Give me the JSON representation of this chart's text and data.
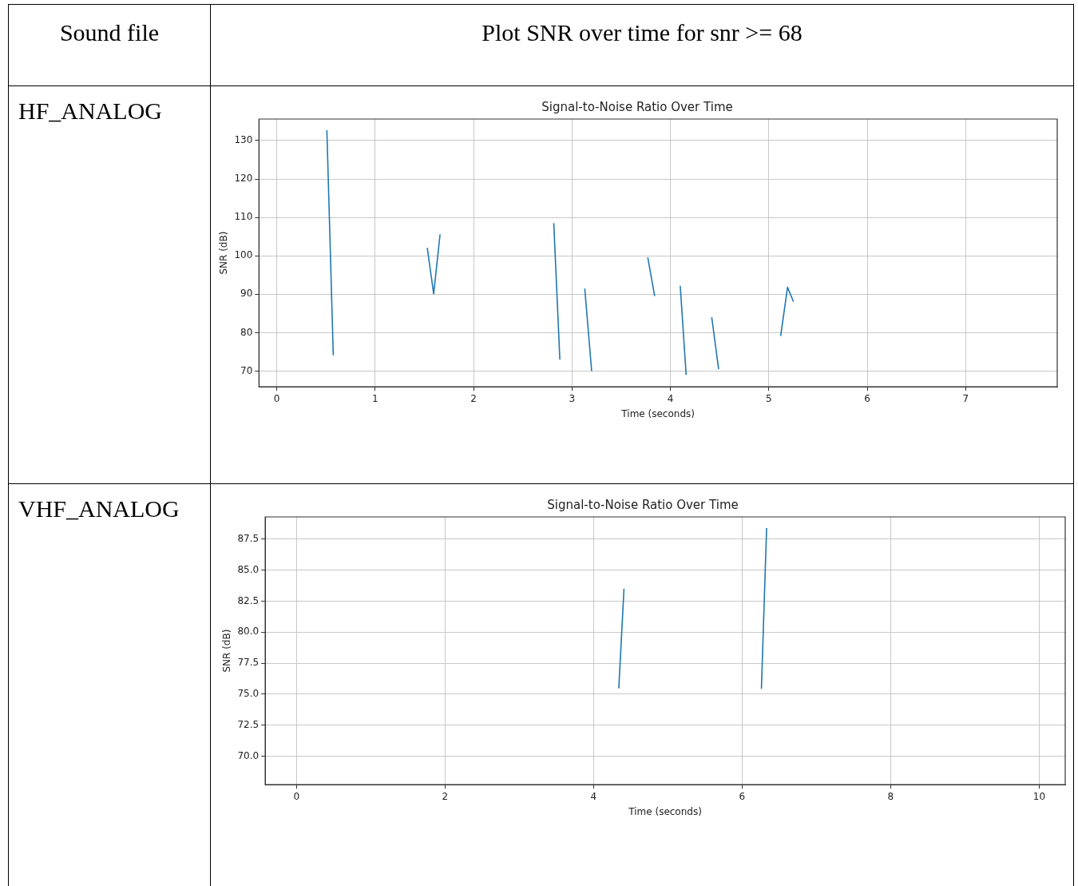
{
  "chart_data": [
    {
      "type": "line",
      "title": "Signal-to-Noise Ratio Over Time",
      "xlabel": "Time (seconds)",
      "ylabel": "SNR (dB)",
      "annotations": [
        "Sound file",
        "Plot SNR over time for snr >= 68",
        "HF_ANALOG"
      ],
      "series": [
        {
          "color": "#1f77b4",
          "x": [
            0.51,
            0.575
          ],
          "values": [
            132.7,
            74.1
          ]
        },
        {
          "color": "#1f77b4",
          "x": [
            1.53,
            1.595,
            1.66
          ],
          "values": [
            102.1,
            90.1,
            105.6
          ]
        },
        {
          "color": "#1f77b4",
          "x": [
            2.815,
            2.877
          ],
          "values": [
            108.5,
            73
          ]
        },
        {
          "color": "#1f77b4",
          "x": [
            3.13,
            3.2
          ],
          "values": [
            91.5,
            70
          ]
        },
        {
          "color": "#1f77b4",
          "x": [
            3.77,
            3.84
          ],
          "values": [
            99.6,
            89.5
          ]
        },
        {
          "color": "#1f77b4",
          "x": [
            4.1,
            4.16
          ],
          "values": [
            92.2,
            69
          ]
        },
        {
          "color": "#1f77b4",
          "x": [
            4.42,
            4.49
          ],
          "values": [
            84,
            70.5
          ]
        },
        {
          "color": "#1f77b4",
          "x": [
            5.12,
            5.19,
            5.25
          ],
          "values": [
            79.1,
            91.8,
            88.1
          ]
        }
      ],
      "xlim": [
        -0.18,
        7.93
      ],
      "xticks": [
        0,
        1,
        2,
        3,
        4,
        5,
        6,
        7
      ],
      "ylim": [
        65.9,
        135.6
      ],
      "yticks": [
        70,
        80,
        90,
        100,
        110,
        120,
        130
      ],
      "grid": true,
      "legend": false,
      "marker": "none",
      "line_style": "solid"
    },
    {
      "type": "line",
      "title": "Signal-to-Noise Ratio Over Time",
      "xlabel": "Time (seconds)",
      "ylabel": "SNR (dB)",
      "annotations": [
        "VHF_ANALOG"
      ],
      "series": [
        {
          "color": "#1f77b4",
          "x": [
            4.34,
            4.41
          ],
          "values": [
            75.47,
            83.5
          ]
        },
        {
          "color": "#1f77b4",
          "x": [
            6.26,
            6.33
          ],
          "values": [
            75.43,
            88.4
          ]
        }
      ],
      "xlim": [
        -0.42,
        10.35
      ],
      "xticks": [
        0,
        2,
        4,
        6,
        8,
        10
      ],
      "ylim": [
        67.7,
        89.3
      ],
      "yticks": [
        {
          "value": 70,
          "label": "70.0"
        },
        {
          "value": 72.5,
          "label": "72.5"
        },
        {
          "value": 75,
          "label": "75.0"
        },
        {
          "value": 77.5,
          "label": "77.5"
        },
        {
          "value": 80,
          "label": "80.0"
        },
        {
          "value": 82.5,
          "label": "82.5"
        },
        {
          "value": 85,
          "label": "85.0"
        },
        {
          "value": 87.5,
          "label": "87.5"
        }
      ],
      "grid": true,
      "legend": false,
      "marker": "none",
      "line_style": "solid"
    }
  ]
}
